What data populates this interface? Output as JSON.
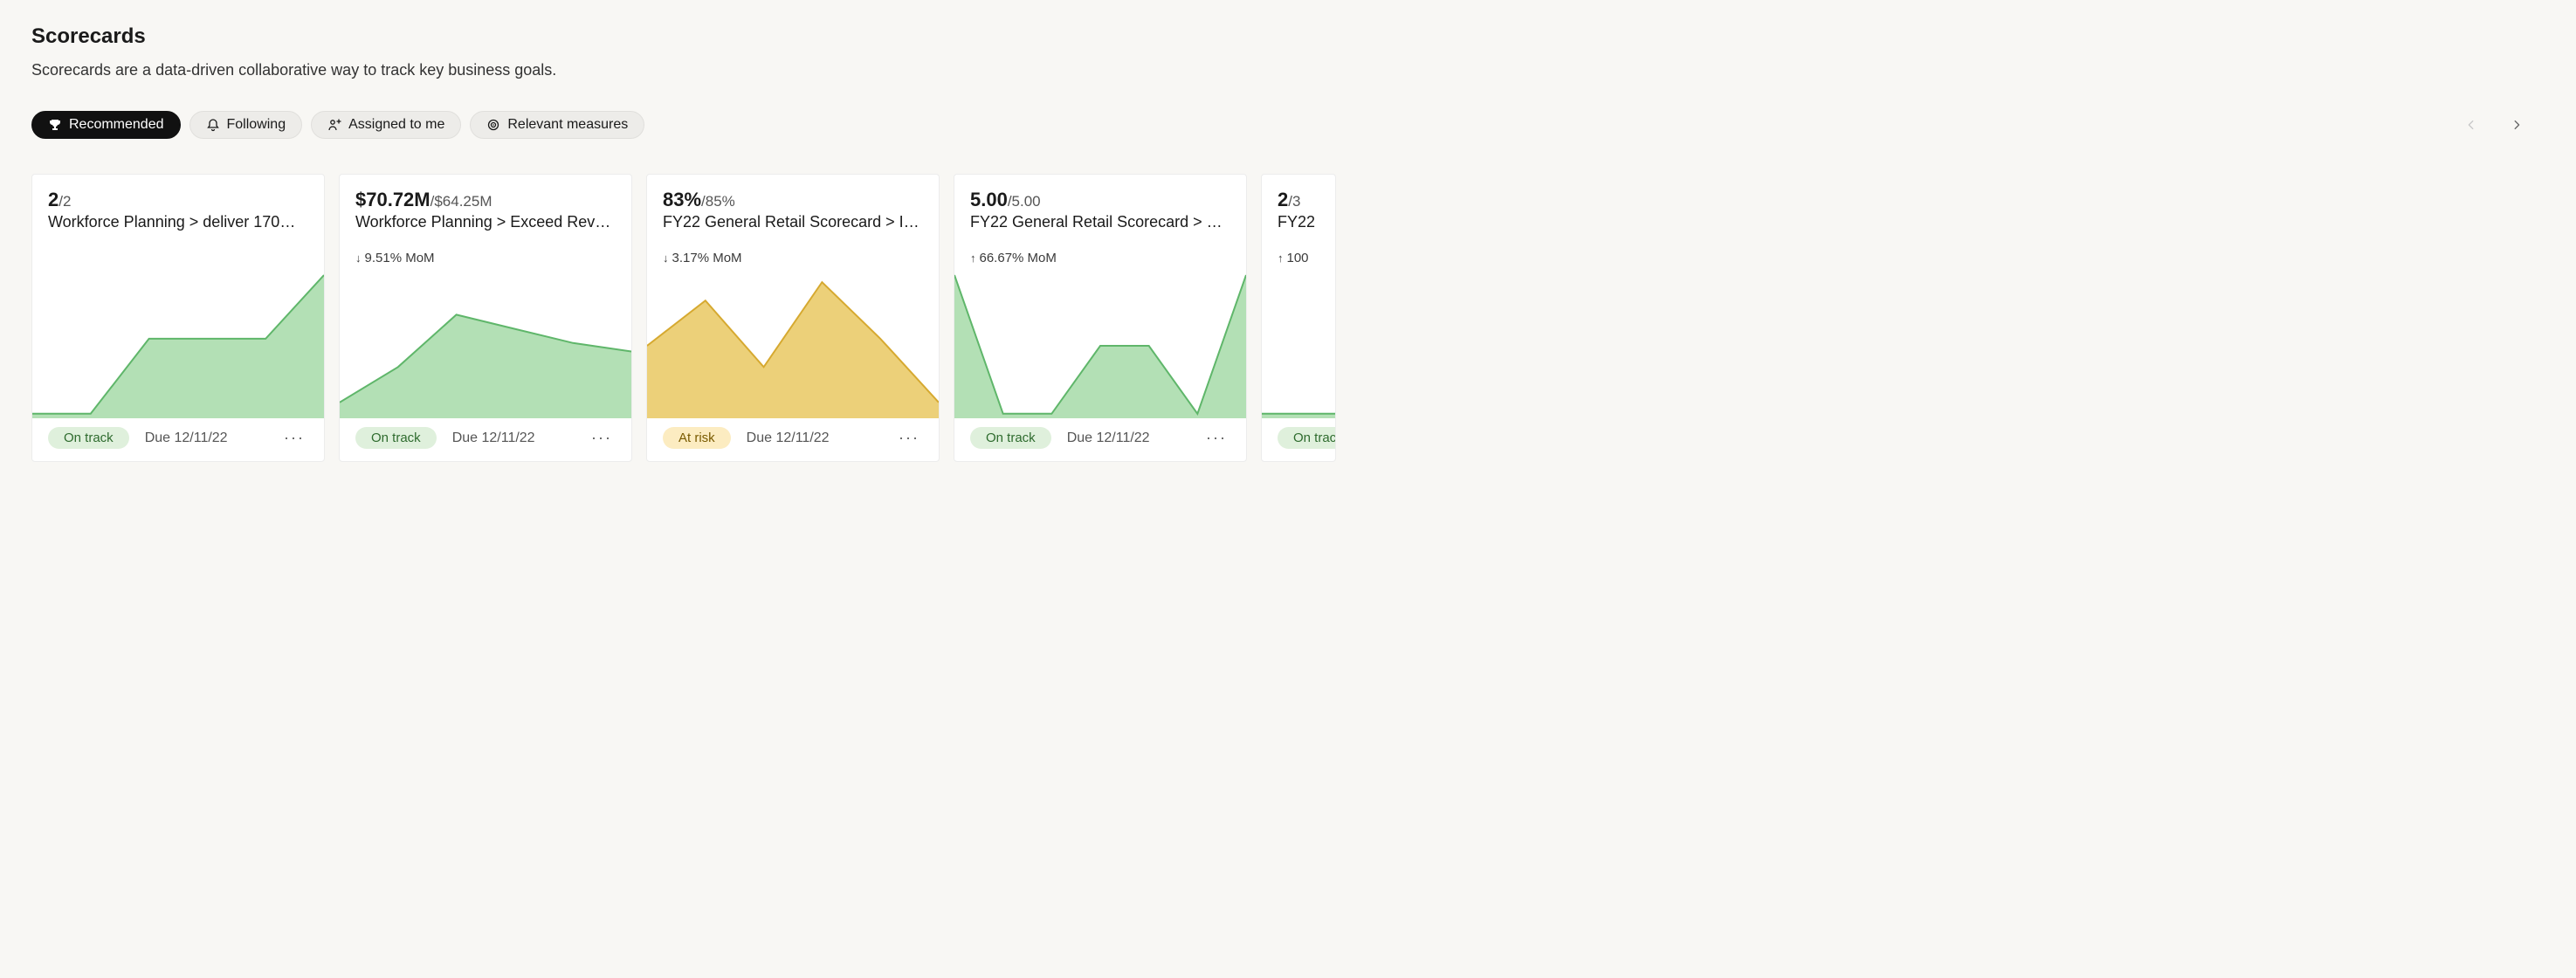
{
  "header": {
    "title": "Scorecards",
    "subtitle": "Scorecards are a data-driven collaborative way to track key business goals."
  },
  "filters": [
    {
      "id": "recommended",
      "label": "Recommended",
      "icon": "trophy",
      "active": true
    },
    {
      "id": "following",
      "label": "Following",
      "icon": "bell",
      "active": false
    },
    {
      "id": "assigned",
      "label": "Assigned to me",
      "icon": "person",
      "active": false
    },
    {
      "id": "relevant",
      "label": "Relevant measures",
      "icon": "target",
      "active": false
    }
  ],
  "nav": {
    "prev_enabled": false,
    "next_enabled": true
  },
  "status_styles": {
    "on_track": {
      "label": "On track",
      "bg": "#dff0dc",
      "fg": "#2e6b2e"
    },
    "at_risk": {
      "label": "At risk",
      "bg": "#fcecc1",
      "fg": "#7a5b00"
    }
  },
  "chart_colors": {
    "green": {
      "stroke": "#5fb66a",
      "fill": "#b3e0b5"
    },
    "yellow": {
      "stroke": "#d6a930",
      "fill": "#ecd079"
    }
  },
  "cards": [
    {
      "value": "2",
      "denom": "/2",
      "title": "Workforce Planning >  deliver 170…",
      "change_dir": "",
      "change_text": "",
      "chart_color": "green",
      "chart_points": [
        0.02,
        0.02,
        0.55,
        0.55,
        0.55,
        1.0
      ],
      "status": "on_track",
      "due": "Due 12/11/22"
    },
    {
      "value": "$70.72M",
      "denom": "/$64.25M",
      "title": "Workforce Planning > Exceed Rev…",
      "change_dir": "down",
      "change_text": "9.51% MoM",
      "chart_color": "green",
      "chart_points": [
        0.1,
        0.35,
        0.72,
        0.62,
        0.52,
        0.46
      ],
      "status": "on_track",
      "due": "Due 12/11/22"
    },
    {
      "value": "83%",
      "denom": "/85%",
      "title": "FY22 General Retail Scorecard > I…",
      "change_dir": "down",
      "change_text": "3.17% MoM",
      "chart_color": "yellow",
      "chart_points": [
        0.5,
        0.82,
        0.35,
        0.95,
        0.55,
        0.1
      ],
      "status": "at_risk",
      "due": "Due 12/11/22"
    },
    {
      "value": "5.00",
      "denom": "/5.00",
      "title": "FY22 General Retail Scorecard > C…",
      "change_dir": "up",
      "change_text": "66.67% MoM",
      "chart_color": "green",
      "chart_points": [
        1.0,
        0.02,
        0.02,
        0.5,
        0.5,
        0.02,
        1.0
      ],
      "status": "on_track",
      "due": "Due 12/11/22"
    },
    {
      "value": "2",
      "denom": "/3",
      "title": "FY22",
      "change_dir": "up",
      "change_text": "100",
      "chart_color": "green",
      "chart_points": [
        0.02,
        0.02,
        0.02,
        0.02,
        0.02,
        0.02
      ],
      "status": "on_track",
      "due": "",
      "partial": true
    }
  ]
}
